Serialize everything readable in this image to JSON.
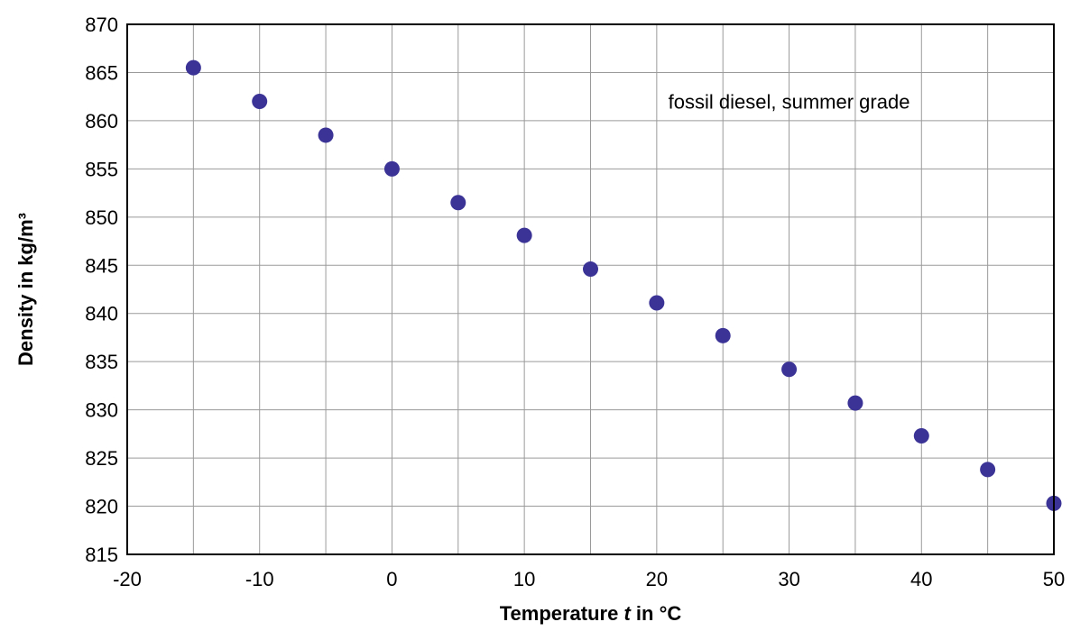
{
  "chart_data": {
    "type": "scatter",
    "title": "",
    "xlabel": "Temperature t in °C",
    "xlabel_parts": [
      "Temperature ",
      "t",
      " in °C"
    ],
    "ylabel": "Density in kg/m³",
    "xlim": [
      -20,
      50
    ],
    "ylim": [
      815,
      870
    ],
    "xticks": [
      -20,
      -10,
      0,
      10,
      20,
      30,
      40,
      50
    ],
    "yticks": [
      815,
      820,
      825,
      830,
      835,
      840,
      845,
      850,
      855,
      860,
      865,
      870
    ],
    "x_minor_grid": [
      -15,
      -5,
      5,
      15,
      25,
      35,
      45
    ],
    "grid": true,
    "marker_color": "#3b3396",
    "annotation": "fossil diesel, summer grade",
    "annotation_position": [
      30,
      862
    ],
    "series": [
      {
        "x": [
          -15,
          -10,
          -5,
          0,
          5,
          10,
          15,
          20,
          25,
          30,
          35,
          40,
          45,
          50
        ],
        "values": [
          865.5,
          862.0,
          858.5,
          855.0,
          851.5,
          848.1,
          844.6,
          841.1,
          837.7,
          834.2,
          830.7,
          827.3,
          823.8,
          820.3
        ]
      }
    ]
  }
}
